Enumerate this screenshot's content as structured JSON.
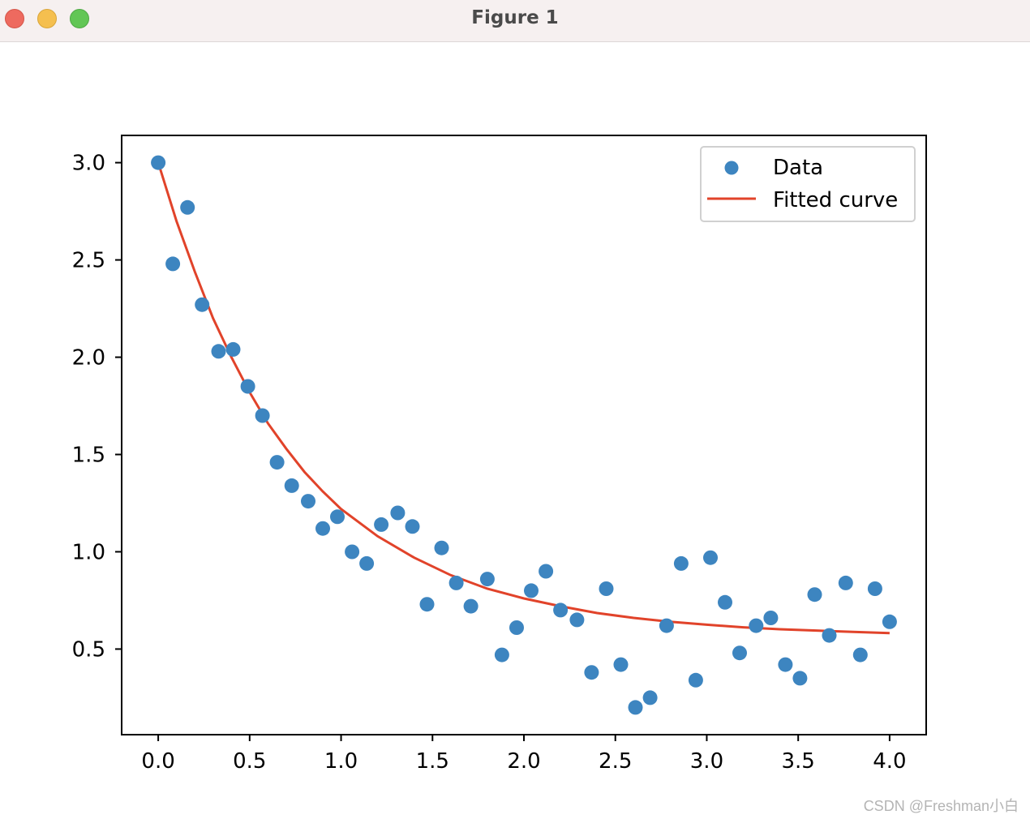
{
  "window": {
    "title": "Figure 1",
    "buttons": [
      "close",
      "minimize",
      "zoom"
    ]
  },
  "watermark": "CSDN @Freshman小白",
  "colors": {
    "data_points": "#3d85c0",
    "fitted_curve": "#e1432a",
    "titlebar": "#f6f0f0"
  },
  "chart_data": {
    "type": "scatter",
    "title": "",
    "xlabel": "",
    "ylabel": "",
    "xlim": [
      -0.2,
      4.2
    ],
    "ylim": [
      0.06,
      3.14
    ],
    "xticks": [
      "0.0",
      "0.5",
      "1.0",
      "1.5",
      "2.0",
      "2.5",
      "3.0",
      "3.5",
      "4.0"
    ],
    "yticks": [
      "0.5",
      "1.0",
      "1.5",
      "2.0",
      "2.5",
      "3.0"
    ],
    "grid": false,
    "legend_position": "top-right",
    "series": [
      {
        "name": "Data",
        "kind": "scatter",
        "x": [
          0.0,
          0.08,
          0.16,
          0.24,
          0.33,
          0.41,
          0.49,
          0.57,
          0.65,
          0.73,
          0.82,
          0.9,
          0.98,
          1.06,
          1.14,
          1.22,
          1.31,
          1.39,
          1.47,
          1.55,
          1.63,
          1.71,
          1.8,
          1.88,
          1.96,
          2.04,
          2.12,
          2.2,
          2.29,
          2.37,
          2.45,
          2.53,
          2.61,
          2.69,
          2.78,
          2.86,
          2.94,
          3.02,
          3.1,
          3.18,
          3.27,
          3.35,
          3.43,
          3.51,
          3.59,
          3.67,
          3.76,
          3.84,
          3.92,
          4.0
        ],
        "y": [
          3.0,
          2.48,
          2.77,
          2.27,
          2.03,
          2.04,
          1.85,
          1.7,
          1.46,
          1.34,
          1.26,
          1.12,
          1.18,
          1.0,
          0.94,
          1.14,
          1.2,
          1.13,
          0.73,
          1.02,
          0.84,
          0.72,
          0.86,
          0.47,
          0.61,
          0.8,
          0.9,
          0.7,
          0.65,
          0.38,
          0.81,
          0.42,
          0.2,
          0.25,
          0.62,
          0.94,
          0.34,
          0.97,
          0.74,
          0.48,
          0.62,
          0.66,
          0.42,
          0.35,
          0.78,
          0.57,
          0.84,
          0.47,
          0.81,
          0.64
        ]
      },
      {
        "name": "Fitted curve",
        "kind": "line",
        "x": [
          0.0,
          0.1,
          0.2,
          0.3,
          0.4,
          0.5,
          0.6,
          0.7,
          0.8,
          0.9,
          1.0,
          1.2,
          1.4,
          1.6,
          1.8,
          2.0,
          2.2,
          2.4,
          2.6,
          2.8,
          3.0,
          3.2,
          3.4,
          3.6,
          3.8,
          4.0
        ],
        "y": [
          3.0,
          2.7,
          2.44,
          2.2,
          2.0,
          1.82,
          1.66,
          1.53,
          1.41,
          1.31,
          1.22,
          1.08,
          0.97,
          0.88,
          0.81,
          0.76,
          0.72,
          0.685,
          0.66,
          0.64,
          0.625,
          0.612,
          0.602,
          0.595,
          0.588,
          0.582
        ]
      }
    ]
  }
}
